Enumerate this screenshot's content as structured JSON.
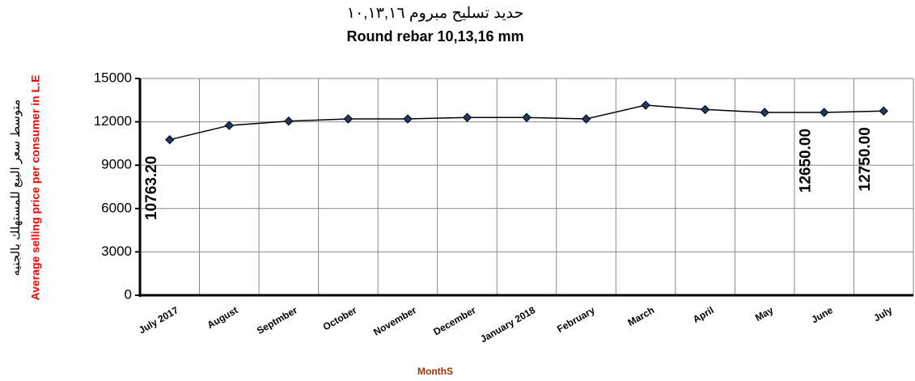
{
  "chart_data": {
    "type": "line",
    "title": "حديد تسليح مبروم ١٠,١٣,١٦",
    "subtitle": "Round rebar 10,13,16 mm",
    "y_label_ar": "متوسط سعر البيع للمستهلك بالجنيه",
    "y_label": "Average selling price per consumer in L.E",
    "x_label": "MonthS",
    "categories": [
      "July 2017",
      "August",
      "Septmber",
      "October",
      "November",
      "December",
      "January 2018",
      "February",
      "March",
      "April",
      "May",
      "June",
      "July"
    ],
    "values": [
      10763.2,
      11750,
      12050,
      12200,
      12200,
      12300,
      12300,
      12200,
      13150,
      12850,
      12650,
      12650,
      12750
    ],
    "value_labels": [
      "10763.20",
      null,
      null,
      null,
      null,
      null,
      null,
      null,
      null,
      null,
      null,
      "12650.00",
      "12750.00"
    ],
    "color": "#000000",
    "marker_color": "#1f3864",
    "ylim": [
      0,
      15000
    ],
    "yticks": [
      0,
      3000,
      6000,
      9000,
      12000,
      15000
    ],
    "grid": true
  }
}
